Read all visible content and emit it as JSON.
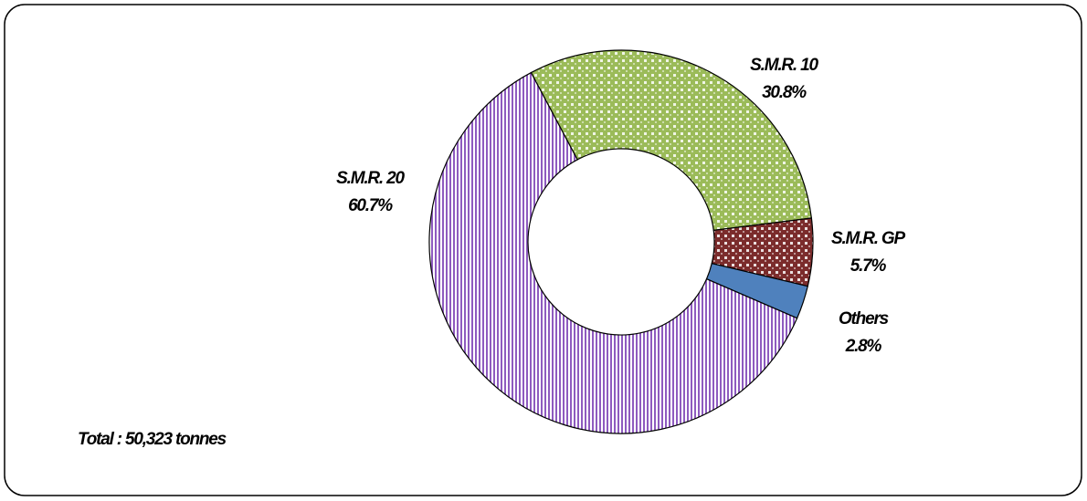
{
  "chart_data": {
    "type": "donut",
    "categories": [
      "S.M.R. 10",
      "S.M.R. GP",
      "Others",
      "S.M.R. 20"
    ],
    "values": [
      30.8,
      5.7,
      2.8,
      60.7
    ],
    "value_labels": [
      "30.8%",
      "5.7%",
      "2.8%",
      "60.7%"
    ],
    "colors": [
      "#9bbb59",
      "#7b2c2c",
      "#4f81bd",
      "#8e5bbf"
    ],
    "patterns": [
      "checker",
      "checker",
      "solid",
      "stripes"
    ],
    "annotation": "Total : 50,323 tonnes"
  }
}
